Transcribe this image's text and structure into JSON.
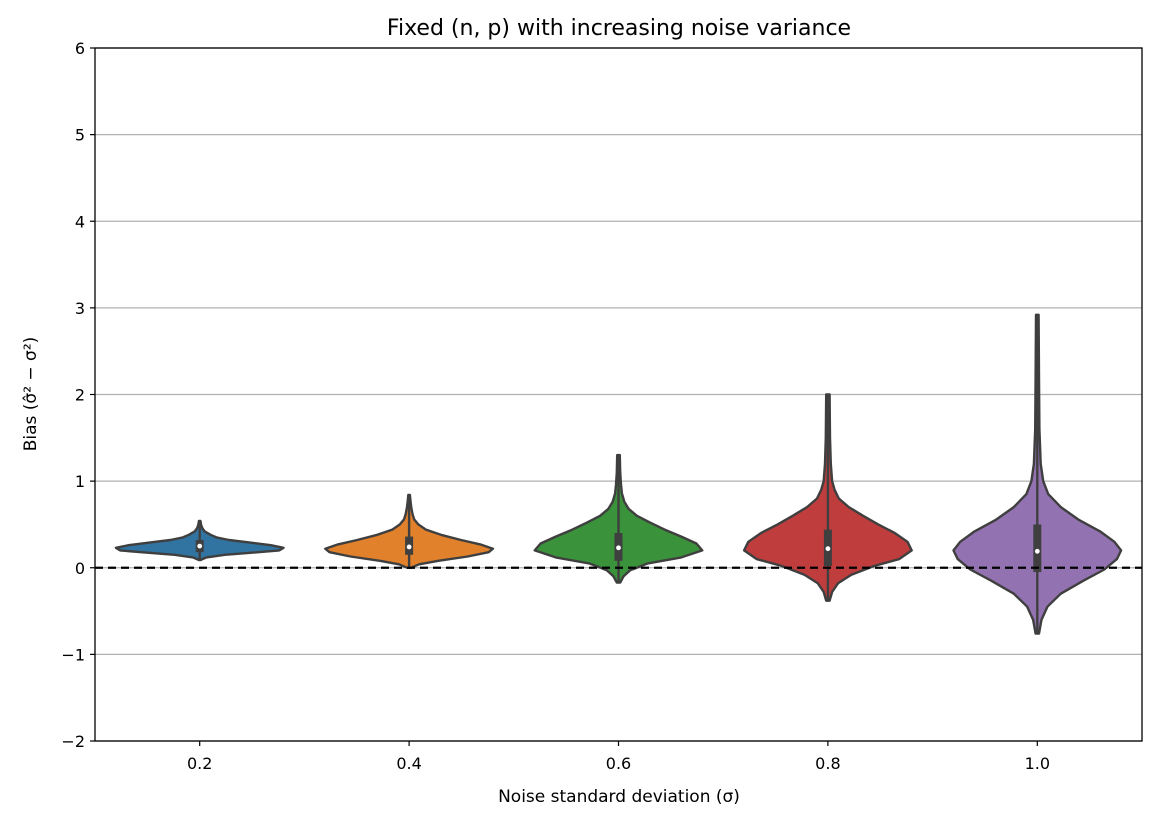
{
  "chart_data": {
    "type": "violin",
    "title": "Fixed (n, p) with increasing noise variance",
    "xlabel": "Noise standard deviation (σ)",
    "ylabel": "Bias (σ̂² − σ²)",
    "categories": [
      "0.2",
      "0.4",
      "0.6",
      "0.8",
      "1.0"
    ],
    "ylim": [
      -2,
      6
    ],
    "yticks": [
      -2,
      -1,
      0,
      1,
      2,
      3,
      4,
      5,
      6
    ],
    "ytick_labels": [
      "−2",
      "−1",
      "0",
      "1",
      "2",
      "3",
      "4",
      "5",
      "6"
    ],
    "grid": "horizontal",
    "reference_line": {
      "y": 0,
      "style": "dashed",
      "color": "#000000"
    },
    "series": [
      {
        "category": "0.2",
        "color": "#3274a1",
        "min": 0.09,
        "q1": 0.18,
        "median": 0.25,
        "q3": 0.32,
        "max": 0.54,
        "density": [
          [
            0.09,
            0.01
          ],
          [
            0.12,
            0.08
          ],
          [
            0.15,
            0.3
          ],
          [
            0.18,
            0.7
          ],
          [
            0.2,
            0.95
          ],
          [
            0.23,
            1.0
          ],
          [
            0.26,
            0.85
          ],
          [
            0.29,
            0.6
          ],
          [
            0.32,
            0.35
          ],
          [
            0.35,
            0.2
          ],
          [
            0.38,
            0.13
          ],
          [
            0.42,
            0.06
          ],
          [
            0.46,
            0.03
          ],
          [
            0.5,
            0.015
          ],
          [
            0.54,
            0.01
          ]
        ]
      },
      {
        "category": "0.4",
        "color": "#e1812c",
        "min": 0.0,
        "q1": 0.15,
        "median": 0.24,
        "q3": 0.36,
        "max": 0.84,
        "density": [
          [
            0.0,
            0.02
          ],
          [
            0.04,
            0.12
          ],
          [
            0.08,
            0.35
          ],
          [
            0.13,
            0.7
          ],
          [
            0.18,
            0.95
          ],
          [
            0.22,
            1.0
          ],
          [
            0.27,
            0.85
          ],
          [
            0.32,
            0.62
          ],
          [
            0.38,
            0.38
          ],
          [
            0.44,
            0.2
          ],
          [
            0.5,
            0.11
          ],
          [
            0.56,
            0.06
          ],
          [
            0.62,
            0.04
          ],
          [
            0.7,
            0.025
          ],
          [
            0.78,
            0.015
          ],
          [
            0.84,
            0.01
          ]
        ]
      },
      {
        "category": "0.6",
        "color": "#3a923a",
        "min": -0.17,
        "q1": 0.08,
        "median": 0.23,
        "q3": 0.4,
        "max": 1.3,
        "density": [
          [
            -0.17,
            0.02
          ],
          [
            -0.1,
            0.06
          ],
          [
            -0.03,
            0.14
          ],
          [
            0.05,
            0.35
          ],
          [
            0.12,
            0.75
          ],
          [
            0.2,
            1.0
          ],
          [
            0.28,
            0.93
          ],
          [
            0.36,
            0.75
          ],
          [
            0.44,
            0.55
          ],
          [
            0.52,
            0.38
          ],
          [
            0.6,
            0.22
          ],
          [
            0.68,
            0.12
          ],
          [
            0.76,
            0.07
          ],
          [
            0.86,
            0.04
          ],
          [
            0.96,
            0.03
          ],
          [
            1.1,
            0.02
          ],
          [
            1.3,
            0.015
          ]
        ]
      },
      {
        "category": "0.8",
        "color": "#c03d3e",
        "min": -0.38,
        "q1": 0.02,
        "median": 0.22,
        "q3": 0.44,
        "max": 2.0,
        "density": [
          [
            -0.38,
            0.02
          ],
          [
            -0.28,
            0.05
          ],
          [
            -0.18,
            0.12
          ],
          [
            -0.08,
            0.28
          ],
          [
            0.02,
            0.55
          ],
          [
            0.1,
            0.85
          ],
          [
            0.2,
            1.0
          ],
          [
            0.3,
            0.95
          ],
          [
            0.4,
            0.8
          ],
          [
            0.5,
            0.6
          ],
          [
            0.6,
            0.42
          ],
          [
            0.7,
            0.25
          ],
          [
            0.8,
            0.13
          ],
          [
            0.9,
            0.08
          ],
          [
            1.0,
            0.05
          ],
          [
            1.2,
            0.035
          ],
          [
            1.5,
            0.025
          ],
          [
            2.0,
            0.02
          ]
        ]
      },
      {
        "category": "1.0",
        "color": "#9372b2",
        "min": -0.76,
        "q1": -0.05,
        "median": 0.19,
        "q3": 0.5,
        "max": 2.92,
        "density": [
          [
            -0.76,
            0.02
          ],
          [
            -0.6,
            0.05
          ],
          [
            -0.45,
            0.12
          ],
          [
            -0.3,
            0.28
          ],
          [
            -0.15,
            0.55
          ],
          [
            -0.02,
            0.8
          ],
          [
            0.1,
            0.95
          ],
          [
            0.2,
            1.0
          ],
          [
            0.3,
            0.92
          ],
          [
            0.42,
            0.75
          ],
          [
            0.55,
            0.5
          ],
          [
            0.7,
            0.28
          ],
          [
            0.85,
            0.13
          ],
          [
            1.0,
            0.07
          ],
          [
            1.2,
            0.04
          ],
          [
            1.6,
            0.025
          ],
          [
            2.2,
            0.02
          ],
          [
            2.92,
            0.015
          ]
        ]
      }
    ]
  }
}
